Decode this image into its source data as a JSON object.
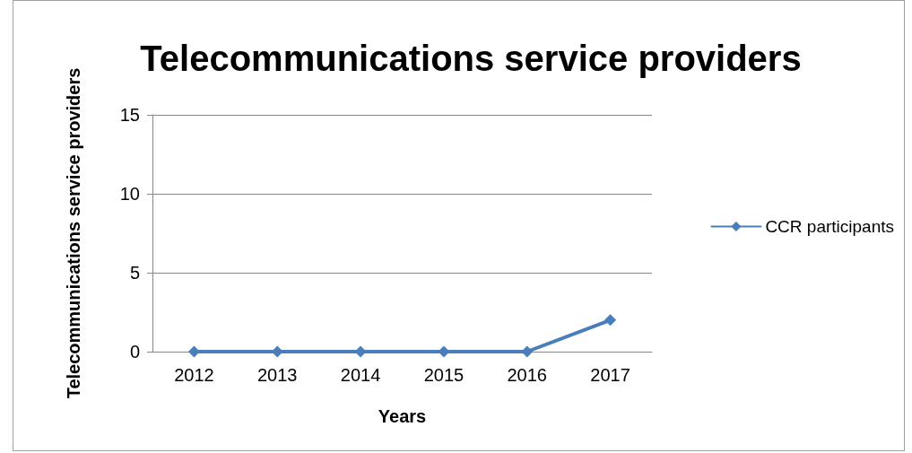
{
  "chart_data": {
    "type": "line",
    "title": "Telecommunications service providers",
    "xlabel": "Years",
    "ylabel": "Telecommunications service providers",
    "categories": [
      "2012",
      "2013",
      "2014",
      "2015",
      "2016",
      "2017"
    ],
    "series": [
      {
        "name": "CCR participants",
        "color": "#4a7ebb",
        "values": [
          0,
          0,
          0,
          0,
          0,
          2
        ]
      }
    ],
    "ylim": [
      0,
      15
    ],
    "yticks": [
      0,
      5,
      10,
      15
    ],
    "grid": "y",
    "legend": "right",
    "marker": "diamond",
    "line_style": "solid"
  }
}
